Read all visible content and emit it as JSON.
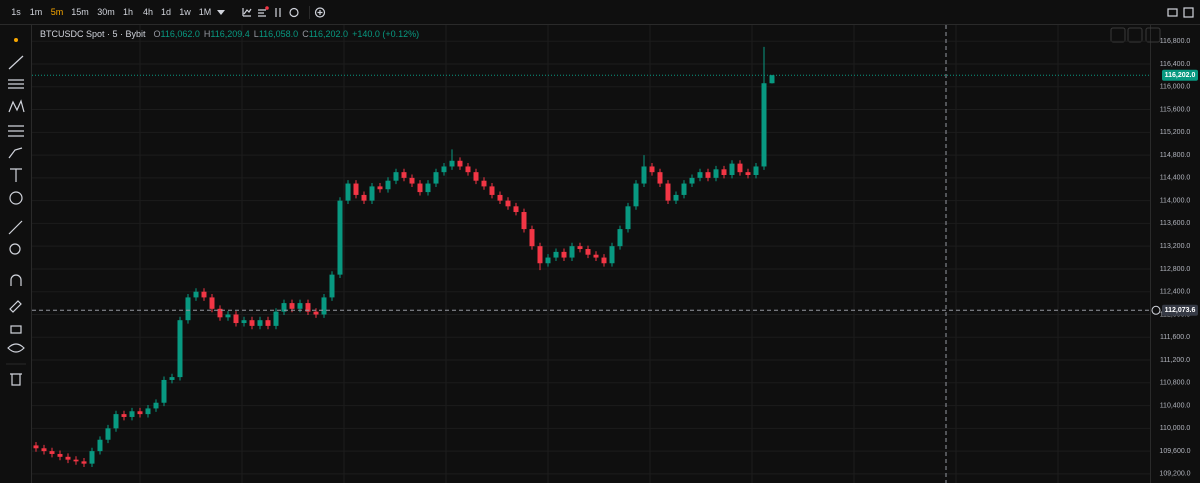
{
  "toolbar": {
    "intervals": [
      "1s",
      "1m",
      "5m",
      "15m",
      "30m",
      "1h",
      "4h",
      "1d",
      "1w",
      "1M"
    ],
    "active_interval": "5m"
  },
  "chart_data": {
    "type": "candlestick",
    "symbol": "BTCUSDC Spot · 5 · Bybit",
    "ohlc_legend": [
      {
        "key": "O",
        "label": "116,062.0"
      },
      {
        "key": "H",
        "label": "116,209.4"
      },
      {
        "key": "L",
        "label": "116,058.0"
      },
      {
        "key": "C",
        "label": "116,202.0"
      }
    ],
    "change": "+140.0 (+0.12%)",
    "up_color": "#089981",
    "down_color": "#f23645",
    "open": [
      109700,
      109650,
      109600,
      109550,
      109500,
      109450,
      109420,
      109380,
      109600,
      109800,
      110000,
      110250,
      110200,
      110300,
      110250,
      110350,
      110450,
      110850,
      110900,
      111900,
      112300,
      112400,
      112300,
      112100,
      111950,
      112000,
      111850,
      111900,
      111800,
      111900,
      111800,
      112050,
      112200,
      112100,
      112200,
      112050,
      112000,
      112300,
      112700,
      114000,
      114300,
      114100,
      114000,
      114250,
      114200,
      114350,
      114500,
      114400,
      114300,
      114150,
      114300,
      114500,
      114600,
      114700,
      114600,
      114500,
      114350,
      114250,
      114100,
      114000,
      113900,
      113800,
      113500,
      113200,
      112900,
      113000,
      113100,
      113000,
      113200,
      113150,
      113050,
      113000,
      112900,
      113200,
      113500,
      113900,
      114300,
      114600,
      114500,
      114300,
      114000,
      114100,
      114300,
      114400,
      114500,
      114400,
      114550,
      114450,
      114650,
      114500,
      114450,
      114600,
      116062
    ],
    "high": [
      109760,
      109710,
      109660,
      109610,
      109560,
      109510,
      109480,
      109660,
      109860,
      110060,
      110310,
      110310,
      110360,
      110360,
      110410,
      110510,
      110910,
      110960,
      111960,
      112360,
      112460,
      112460,
      112360,
      112160,
      112060,
      112060,
      111960,
      111960,
      111960,
      111960,
      112110,
      112260,
      112260,
      112260,
      112260,
      112110,
      112360,
      112760,
      114060,
      114360,
      114360,
      114160,
      114310,
      114310,
      114410,
      114560,
      114560,
      114460,
      114360,
      114360,
      114560,
      114660,
      114900,
      114760,
      114660,
      114560,
      114410,
      114310,
      114160,
      114060,
      113960,
      113860,
      113560,
      113260,
      113060,
      113160,
      113160,
      113260,
      113260,
      113210,
      113110,
      113060,
      113260,
      113560,
      113960,
      114360,
      114800,
      114660,
      114560,
      114360,
      114160,
      114360,
      114460,
      114560,
      114560,
      114610,
      114610,
      114710,
      114710,
      114560,
      114660,
      116700,
      116209.4
    ],
    "low": [
      109590,
      109540,
      109490,
      109440,
      109390,
      109360,
      109320,
      109320,
      109540,
      109740,
      109940,
      110140,
      110140,
      110190,
      110190,
      110290,
      110390,
      110790,
      110840,
      111840,
      112240,
      112240,
      112040,
      111890,
      111890,
      111790,
      111790,
      111740,
      111740,
      111740,
      111740,
      111990,
      112040,
      112040,
      111990,
      111940,
      111940,
      112240,
      112640,
      113940,
      114040,
      113940,
      113940,
      114140,
      114140,
      114290,
      114340,
      114240,
      114090,
      114090,
      114240,
      114440,
      114540,
      114540,
      114440,
      114290,
      114190,
      114040,
      113940,
      113840,
      113740,
      113440,
      113140,
      112780,
      112840,
      112940,
      112940,
      112940,
      113090,
      112990,
      112940,
      112840,
      112840,
      113140,
      113440,
      113840,
      114240,
      114440,
      114240,
      113940,
      113940,
      114040,
      114240,
      114340,
      114340,
      114340,
      114390,
      114390,
      114440,
      114390,
      114390,
      114540,
      116058
    ],
    "close": [
      109650,
      109600,
      109550,
      109500,
      109450,
      109420,
      109380,
      109600,
      109800,
      110000,
      110250,
      110200,
      110300,
      110250,
      110350,
      110450,
      110850,
      110900,
      111900,
      112300,
      112400,
      112300,
      112100,
      111950,
      112000,
      111850,
      111900,
      111800,
      111900,
      111800,
      112050,
      112200,
      112100,
      112200,
      112050,
      112000,
      112300,
      112700,
      114000,
      114300,
      114100,
      114000,
      114250,
      114200,
      114350,
      114500,
      114400,
      114300,
      114150,
      114300,
      114500,
      114600,
      114700,
      114600,
      114500,
      114350,
      114250,
      114100,
      114000,
      113900,
      113800,
      113500,
      113200,
      112900,
      113000,
      113100,
      113000,
      113200,
      113150,
      113050,
      113000,
      112900,
      113200,
      113500,
      113900,
      114300,
      114600,
      114500,
      114300,
      114000,
      114100,
      114300,
      114400,
      114500,
      114400,
      114550,
      114450,
      114650,
      114500,
      114450,
      114600,
      116062,
      116202
    ],
    "ylim": [
      109040,
      117085
    ],
    "yticks": [
      {
        "value": 109200,
        "label": "109,200.0"
      },
      {
        "value": 109600,
        "label": "109,600.0"
      },
      {
        "value": 110000,
        "label": "110,000.0"
      },
      {
        "value": 110400,
        "label": "110,400.0"
      },
      {
        "value": 110800,
        "label": "110,800.0"
      },
      {
        "value": 111200,
        "label": "111,200.0"
      },
      {
        "value": 111600,
        "label": "111,600.0"
      },
      {
        "value": 112000,
        "label": "112,000.0"
      },
      {
        "value": 112400,
        "label": "112,400.0"
      },
      {
        "value": 112800,
        "label": "112,800.0"
      },
      {
        "value": 113200,
        "label": "113,200.0"
      },
      {
        "value": 113600,
        "label": "113,600.0"
      },
      {
        "value": 114000,
        "label": "114,000.0"
      },
      {
        "value": 114400,
        "label": "114,400.0"
      },
      {
        "value": 114800,
        "label": "114,800.0"
      },
      {
        "value": 115200,
        "label": "115,200.0"
      },
      {
        "value": 115600,
        "label": "115,600.0"
      },
      {
        "value": 116000,
        "label": "116,000.0"
      },
      {
        "value": 116400,
        "label": "116,400.0"
      },
      {
        "value": 116800,
        "label": "116,800.0"
      }
    ],
    "grid": true,
    "last_price": {
      "value": 116202,
      "label": "116,202.0"
    },
    "crosshair": {
      "value": 112073.6,
      "label": "112,073.6"
    }
  }
}
